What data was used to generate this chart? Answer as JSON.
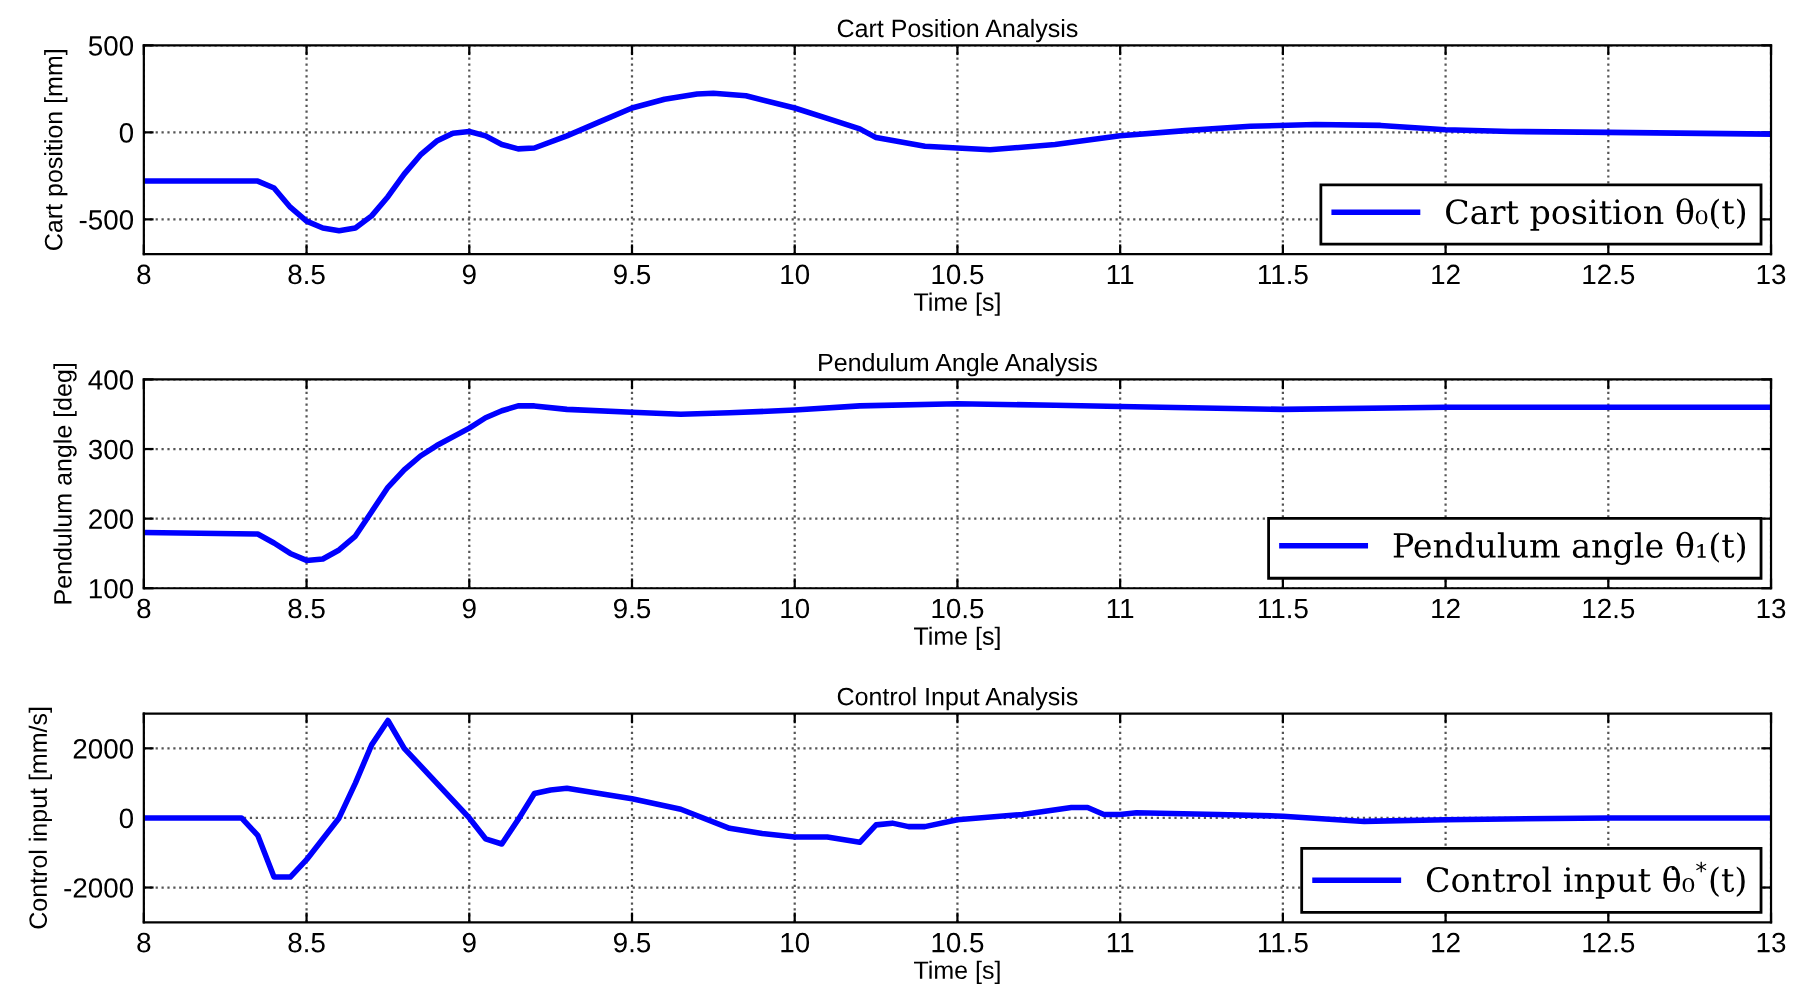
{
  "chart_data": [
    {
      "type": "line",
      "title": "Cart Position Analysis",
      "xlabel": "Time [s]",
      "ylabel": "Cart position [mm]",
      "xlim": [
        8,
        13
      ],
      "xticks": [
        8,
        8.5,
        9,
        9.5,
        10,
        10.5,
        11,
        11.5,
        12,
        12.5,
        13
      ],
      "ylim": [
        -700,
        500
      ],
      "yticks": [
        -500,
        0,
        500
      ],
      "grid": true,
      "legend": "bottom right",
      "series": [
        {
          "name": "Cart position θ₀(t)",
          "color": "#0000ff",
          "x": [
            8,
            8.35,
            8.4,
            8.45,
            8.5,
            8.55,
            8.6,
            8.65,
            8.7,
            8.75,
            8.8,
            8.85,
            8.9,
            8.95,
            9.0,
            9.05,
            9.1,
            9.15,
            9.2,
            9.3,
            9.4,
            9.5,
            9.6,
            9.7,
            9.75,
            9.85,
            10.0,
            10.1,
            10.2,
            10.25,
            10.4,
            10.6,
            10.8,
            11.0,
            11.2,
            11.4,
            11.6,
            11.8,
            12.0,
            12.2,
            12.5,
            13
          ],
          "values": [
            -280,
            -280,
            -320,
            -430,
            -510,
            -550,
            -565,
            -550,
            -480,
            -370,
            -240,
            -130,
            -50,
            -5,
            5,
            -20,
            -70,
            -95,
            -90,
            -20,
            60,
            140,
            190,
            220,
            225,
            210,
            140,
            80,
            20,
            -30,
            -80,
            -100,
            -70,
            -20,
            10,
            35,
            45,
            40,
            15,
            5,
            0,
            -10
          ]
        }
      ]
    },
    {
      "type": "line",
      "title": "Pendulum Angle Analysis",
      "xlabel": "Time [s]",
      "ylabel": "Pendulum angle [deg]",
      "xlim": [
        8,
        13
      ],
      "xticks": [
        8,
        8.5,
        9,
        9.5,
        10,
        10.5,
        11,
        11.5,
        12,
        12.5,
        13
      ],
      "ylim": [
        100,
        400
      ],
      "yticks": [
        100,
        200,
        300,
        400
      ],
      "grid": true,
      "legend": "bottom right",
      "series": [
        {
          "name": "Pendulum angle θ₁(t)",
          "color": "#0000ff",
          "x": [
            8,
            8.35,
            8.4,
            8.45,
            8.5,
            8.55,
            8.6,
            8.65,
            8.7,
            8.75,
            8.8,
            8.85,
            8.9,
            9.0,
            9.05,
            9.1,
            9.15,
            9.2,
            9.3,
            9.5,
            9.65,
            9.8,
            10.0,
            10.2,
            10.5,
            10.8,
            11.0,
            11.5,
            12.0,
            13
          ],
          "values": [
            180,
            178,
            165,
            150,
            140,
            142,
            155,
            175,
            210,
            245,
            270,
            290,
            305,
            330,
            345,
            355,
            362,
            362,
            357,
            353,
            350,
            352,
            356,
            362,
            365,
            363,
            361,
            357,
            360,
            360
          ]
        }
      ]
    },
    {
      "type": "line",
      "title": "Control Input Analysis",
      "xlabel": "Time [s]",
      "ylabel": "Control input [mm/s]",
      "xlim": [
        8,
        13
      ],
      "xticks": [
        8,
        8.5,
        9,
        9.5,
        10,
        10.5,
        11,
        11.5,
        12,
        12.5,
        13
      ],
      "ylim": [
        -3000,
        3000
      ],
      "yticks": [
        -2000,
        0,
        2000
      ],
      "grid": true,
      "legend": "bottom right",
      "series": [
        {
          "name": "Control input θ̇₀$^{*}$(t)",
          "color": "#0000ff",
          "x": [
            8,
            8.3,
            8.35,
            8.4,
            8.45,
            8.5,
            8.6,
            8.65,
            8.7,
            8.75,
            8.8,
            8.9,
            9.0,
            9.05,
            9.1,
            9.15,
            9.2,
            9.25,
            9.3,
            9.5,
            9.65,
            9.8,
            9.9,
            10.0,
            10.1,
            10.2,
            10.25,
            10.3,
            10.35,
            10.4,
            10.5,
            10.7,
            10.85,
            10.9,
            10.95,
            11.0,
            11.05,
            11.3,
            11.5,
            11.75,
            12.0,
            12.5,
            13
          ],
          "values": [
            0,
            0,
            -500,
            -1700,
            -1700,
            -1200,
            0,
            1000,
            2100,
            2800,
            2000,
            1000,
            0,
            -600,
            -750,
            -50,
            700,
            800,
            850,
            550,
            250,
            -300,
            -450,
            -550,
            -550,
            -700,
            -200,
            -150,
            -250,
            -250,
            -50,
            100,
            300,
            300,
            100,
            100,
            150,
            100,
            50,
            -100,
            -50,
            0,
            0
          ]
        }
      ]
    }
  ]
}
